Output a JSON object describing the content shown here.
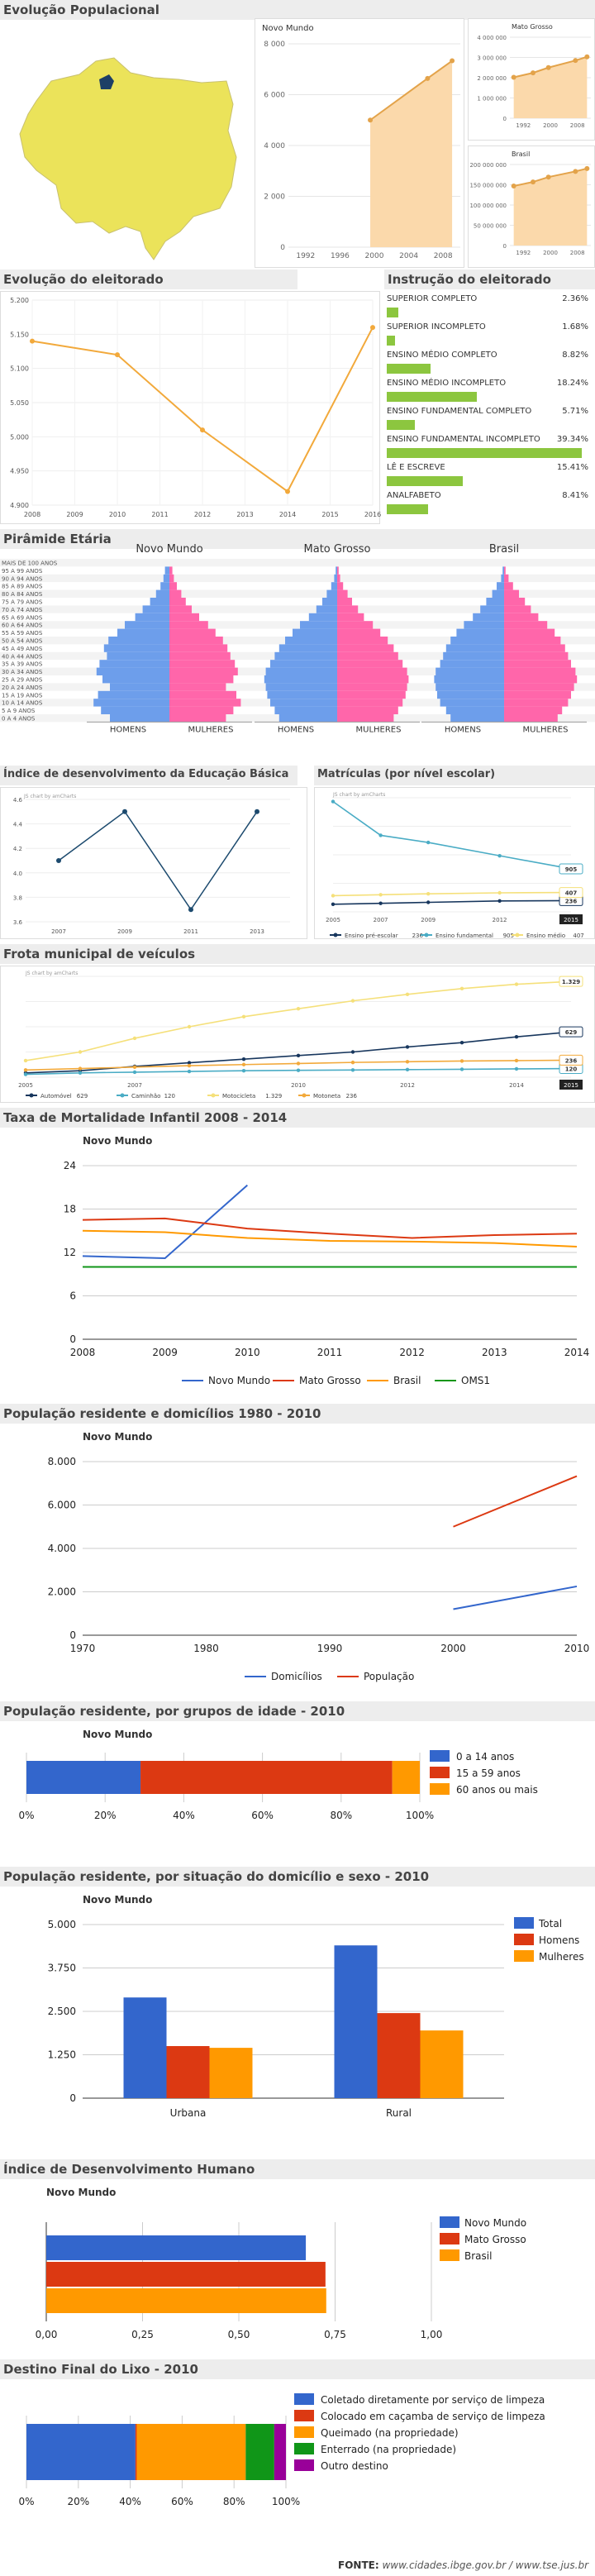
{
  "footer": {
    "label": "FONTE:",
    "text": "www.cidades.ibge.gov.br / www.tse.jus.br"
  },
  "sections": {
    "pop_evolution": "Evolução Populacional",
    "electorate": "Evolução do eleitorado",
    "instruction": "Instrução do eleitorado",
    "pyramid": "Pirâmide Etária",
    "ideb": "Índice de desenvolvimento da Educação Básica",
    "enrollment": "Matrículas (por nível escolar)",
    "fleet": "Frota municipal de veículos",
    "mortality": "Taxa de Mortalidade Infantil 2008 - 2014",
    "residents": "População residente e domicílios 1980 - 2010",
    "age_groups": "População residente, por grupos de idade - 2010",
    "situation": "População residente, por situação do domicílio e sexo - 2010",
    "idh": "Índice de Desenvolvimento Humano",
    "trash": "Destino Final do Lixo - 2010"
  },
  "chart_data": [
    {
      "id": "pop_nm",
      "type": "area",
      "title": "Novo Mundo",
      "x": [
        2000,
        2007,
        2010
      ],
      "values": [
        5000,
        6640,
        7332
      ],
      "ylim": [
        0,
        8000
      ],
      "yticks": [
        "0",
        "2 000",
        "4 000",
        "6 000",
        "8 000"
      ],
      "xticks": [
        "1992",
        "1996",
        "2000",
        "2004",
        "2008"
      ],
      "color": "#e3a34a"
    },
    {
      "id": "pop_mt",
      "type": "area",
      "title": "Mato Grosso",
      "x": [
        1991,
        1996,
        2000,
        2007,
        2010
      ],
      "values": [
        2020000,
        2240000,
        2500000,
        2850000,
        3030000
      ],
      "ylim": [
        0,
        4000000
      ],
      "yticks": [
        "0",
        "1 000 000",
        "2 000 000",
        "3 000 000",
        "4 000 000"
      ],
      "xticks": [
        "1992",
        "2000",
        "2008"
      ],
      "color": "#e3a34a"
    },
    {
      "id": "pop_br",
      "type": "area",
      "title": "Brasil",
      "x": [
        1991,
        1996,
        2000,
        2007,
        2010
      ],
      "values": [
        147000000,
        157000000,
        169000000,
        183000000,
        190000000
      ],
      "ylim": [
        0,
        200000000
      ],
      "yticks": [
        "0",
        "50 000 000",
        "100 000 000",
        "150 000 000",
        "200 000 000"
      ],
      "xticks": [
        "1992",
        "2000",
        "2008"
      ],
      "color": "#e3a34a"
    },
    {
      "id": "electorate",
      "type": "line",
      "x": [
        2008,
        2010,
        2012,
        2014,
        2016
      ],
      "values": [
        5140,
        5120,
        5010,
        4920,
        5160
      ],
      "ylim": [
        4900,
        5200
      ],
      "yticks": [
        "4.900",
        "4.950",
        "5.000",
        "5.050",
        "5.100",
        "5.150",
        "5.200"
      ],
      "xticks": [
        "2008",
        "2009",
        "2010",
        "2011",
        "2012",
        "2013",
        "2014",
        "2015",
        "2016"
      ],
      "color": "#f2a93b"
    },
    {
      "id": "instruction",
      "type": "bar",
      "categories": [
        "SUPERIOR COMPLETO",
        "SUPERIOR INCOMPLETO",
        "ENSINO MÉDIO COMPLETO",
        "ENSINO MÉDIO INCOMPLETO",
        "ENSINO FUNDAMENTAL COMPLETO",
        "ENSINO FUNDAMENTAL INCOMPLETO",
        "LÊ E ESCREVE",
        "ANALFABETO"
      ],
      "values": [
        2.36,
        1.68,
        8.82,
        18.24,
        5.71,
        39.34,
        15.41,
        8.41
      ],
      "labels": [
        "2.36%",
        "1.68%",
        "8.82%",
        "18.24%",
        "5.71%",
        "39.34%",
        "15.41%",
        "8.41%"
      ],
      "color": "#8cc63f"
    },
    {
      "id": "pyramid",
      "type": "bar",
      "age_groups": [
        "MAIS DE 100 ANOS",
        "95 A 99 ANOS",
        "90 A 94 ANOS",
        "85 A 89 ANOS",
        "80 A 84 ANOS",
        "75 A 79 ANOS",
        "70 A 74 ANOS",
        "65 A 69 ANOS",
        "60 A 64 ANOS",
        "55 A 59 ANOS",
        "50 A 54 ANOS",
        "45 A 49 ANOS",
        "40 A 44 ANOS",
        "35 A 39 ANOS",
        "30 A 34 ANOS",
        "25 A 29 ANOS",
        "20 A 24 ANOS",
        "15 A 19 ANOS",
        "10 A 14 ANOS",
        "5 A 9 ANOS",
        "0 A 4 ANOS"
      ],
      "panels": [
        {
          "title": "Novo Mundo",
          "men": [
            0,
            0.3,
            0.4,
            0.6,
            0.9,
            1.3,
            1.8,
            2.3,
            3.0,
            3.5,
            4.1,
            4.4,
            4.2,
            4.7,
            4.9,
            4.5,
            4.0,
            4.8,
            5.1,
            4.6,
            4.0
          ],
          "women": [
            0,
            0.2,
            0.3,
            0.5,
            0.8,
            1.1,
            1.5,
            2.0,
            2.6,
            3.1,
            3.6,
            3.9,
            4.1,
            4.4,
            4.6,
            4.3,
            3.8,
            4.5,
            4.8,
            4.3,
            3.8
          ]
        },
        {
          "title": "Mato Grosso",
          "men": [
            0,
            0.1,
            0.2,
            0.4,
            0.7,
            1.0,
            1.4,
            1.9,
            2.5,
            3.0,
            3.5,
            3.9,
            4.2,
            4.5,
            4.8,
            4.9,
            4.8,
            4.7,
            4.5,
            4.2,
            3.9
          ],
          "women": [
            0,
            0.1,
            0.2,
            0.4,
            0.7,
            1.0,
            1.4,
            1.8,
            2.4,
            2.9,
            3.4,
            3.8,
            4.1,
            4.4,
            4.7,
            4.8,
            4.7,
            4.6,
            4.4,
            4.1,
            3.8
          ]
        },
        {
          "title": "Brasil",
          "men": [
            0,
            0.1,
            0.2,
            0.5,
            0.8,
            1.2,
            1.6,
            2.1,
            2.7,
            3.2,
            3.6,
            3.9,
            4.1,
            4.3,
            4.6,
            4.7,
            4.6,
            4.5,
            4.3,
            3.9,
            3.6
          ],
          "women": [
            0,
            0.1,
            0.3,
            0.6,
            1.0,
            1.4,
            1.8,
            2.3,
            2.9,
            3.4,
            3.8,
            4.1,
            4.3,
            4.5,
            4.8,
            4.9,
            4.7,
            4.5,
            4.3,
            3.9,
            3.6
          ]
        }
      ],
      "xlabels": [
        "HOMENS",
        "MULHERES"
      ],
      "colors": {
        "men": "#6d9eeb",
        "women": "#ff66aa"
      }
    },
    {
      "id": "ideb",
      "type": "line",
      "x": [
        2007,
        2009,
        2011,
        2013
      ],
      "values": [
        4.1,
        4.5,
        3.7,
        4.5
      ],
      "ylim": [
        3.6,
        4.6
      ],
      "yticks": [
        "3.6",
        "3.8",
        "4.0",
        "4.2",
        "4.4",
        "4.6"
      ],
      "xticks": [
        "2007",
        "2009",
        "2011",
        "2013"
      ],
      "chart_caption": "JS chart by amCharts",
      "color": "#1c4a6e"
    },
    {
      "id": "enrollment",
      "type": "line",
      "x": [
        2005,
        2007,
        2009,
        2012,
        2015
      ],
      "series": [
        {
          "name": "Ensino pré-escolar",
          "values": [
            160,
            180,
            200,
            230,
            236
          ],
          "color": "#17365d",
          "end_label": "236"
        },
        {
          "name": "Ensino fundamental",
          "values": [
            2320,
            1610,
            1460,
            1180,
            905
          ],
          "color": "#4aacc5",
          "end_label": "905"
        },
        {
          "name": "Ensino médio",
          "values": [
            340,
            360,
            380,
            400,
            407
          ],
          "color": "#f5e07a",
          "end_label": "407"
        }
      ],
      "legend_values": [
        "236",
        "905",
        "407"
      ],
      "xticks": [
        "2005",
        "2007",
        "2009",
        "2012"
      ],
      "last_label": "2015",
      "chart_caption": "JS chart by amCharts"
    },
    {
      "id": "fleet",
      "type": "line",
      "x": [
        2005,
        2006,
        2007,
        2008,
        2009,
        2010,
        2011,
        2012,
        2013,
        2014,
        2015
      ],
      "series": [
        {
          "name": "Automóvel",
          "values": [
            60,
            90,
            150,
            200,
            250,
            300,
            350,
            420,
            480,
            560,
            629
          ],
          "color": "#17365d",
          "end_label": "629"
        },
        {
          "name": "Caminhão",
          "values": [
            40,
            60,
            70,
            80,
            90,
            95,
            100,
            105,
            110,
            115,
            120
          ],
          "color": "#4aacc5",
          "end_label": "120"
        },
        {
          "name": "Motocicleta",
          "values": [
            230,
            350,
            540,
            700,
            840,
            950,
            1060,
            1150,
            1230,
            1290,
            1329
          ],
          "color": "#f5e07a",
          "end_label": "1.329"
        },
        {
          "name": "Motoneta",
          "values": [
            100,
            120,
            140,
            160,
            175,
            190,
            205,
            215,
            225,
            230,
            236
          ],
          "color": "#f2a93b",
          "end_label": "236"
        }
      ],
      "legend_values": [
        "629",
        "120",
        "1.329",
        "236"
      ],
      "xticks": [
        "2005",
        "2007",
        "2010",
        "2012",
        "2014"
      ],
      "last_label": "2015",
      "chart_caption": "JS chart by amCharts"
    },
    {
      "id": "mortality",
      "type": "line",
      "title": "Novo Mundo",
      "x": [
        2008,
        2009,
        2010,
        2011,
        2012,
        2013,
        2014
      ],
      "series": [
        {
          "name": "Novo Mundo",
          "values": [
            11.5,
            11.2,
            21.3,
            null,
            null,
            null,
            null
          ],
          "color": "#3366cc"
        },
        {
          "name": "Mato Grosso",
          "values": [
            16.5,
            16.7,
            15.3,
            14.6,
            14.0,
            14.4,
            14.6
          ],
          "color": "#dc3912"
        },
        {
          "name": "Brasil",
          "values": [
            15.0,
            14.8,
            14.0,
            13.6,
            13.5,
            13.3,
            12.8
          ],
          "color": "#ff9900"
        },
        {
          "name": "OMS1",
          "values": [
            10.0,
            10.0,
            10.0,
            10.0,
            10.0,
            10.0,
            10.0
          ],
          "color": "#109618"
        }
      ],
      "ylim": [
        0,
        24
      ],
      "yticks": [
        "0",
        "6",
        "12",
        "18",
        "24"
      ],
      "xticks": [
        "2008",
        "2009",
        "2010",
        "2011",
        "2012",
        "2013",
        "2014"
      ]
    },
    {
      "id": "residents",
      "type": "line",
      "title": "Novo Mundo",
      "x": [
        2000,
        2010
      ],
      "series": [
        {
          "name": "Domicílios",
          "values": [
            1200,
            2250
          ],
          "color": "#3366cc"
        },
        {
          "name": "População",
          "values": [
            5000,
            7332
          ],
          "color": "#dc3912"
        }
      ],
      "ylim": [
        0,
        8000
      ],
      "xlim": [
        1970,
        2010
      ],
      "yticks": [
        "0",
        "2.000",
        "4.000",
        "6.000",
        "8.000"
      ],
      "xticks": [
        "1970",
        "1980",
        "1990",
        "2000",
        "2010"
      ]
    },
    {
      "id": "age_groups",
      "type": "bar",
      "title": "Novo Mundo",
      "series": [
        {
          "name": "0 a 14 anos",
          "value": 29,
          "color": "#3366cc"
        },
        {
          "name": "15 a 59 anos",
          "value": 64,
          "color": "#dc3912"
        },
        {
          "name": "60 anos ou mais",
          "value": 7,
          "color": "#ff9900"
        }
      ],
      "xticks": [
        "0%",
        "20%",
        "40%",
        "60%",
        "80%",
        "100%"
      ]
    },
    {
      "id": "situation",
      "type": "bar",
      "title": "Novo Mundo",
      "categories": [
        "Urbana",
        "Rural"
      ],
      "series": [
        {
          "name": "Total",
          "values": [
            2900,
            4400
          ],
          "color": "#3366cc"
        },
        {
          "name": "Homens",
          "values": [
            1500,
            2450
          ],
          "color": "#dc3912"
        },
        {
          "name": "Mulheres",
          "values": [
            1450,
            1950
          ],
          "color": "#ff9900"
        }
      ],
      "ylim": [
        0,
        5000
      ],
      "yticks": [
        "0",
        "1.250",
        "2.500",
        "3.750",
        "5.000"
      ]
    },
    {
      "id": "idh",
      "type": "bar",
      "title": "Novo Mundo",
      "series": [
        {
          "name": "Novo Mundo",
          "value": 0.674,
          "color": "#3366cc"
        },
        {
          "name": "Mato Grosso",
          "value": 0.725,
          "color": "#dc3912"
        },
        {
          "name": "Brasil",
          "value": 0.727,
          "color": "#ff9900"
        }
      ],
      "xlim": [
        0,
        1
      ],
      "xticks": [
        "0,00",
        "0,25",
        "0,50",
        "0,75",
        "1,00"
      ]
    },
    {
      "id": "trash",
      "type": "bar",
      "series": [
        {
          "name": "Coletado diretamente por serviço de limpeza",
          "value": 42,
          "color": "#3366cc"
        },
        {
          "name": "Colocado em caçamba de serviço de limpeza",
          "value": 0.5,
          "color": "#dc3912"
        },
        {
          "name": "Queimado (na propriedade)",
          "value": 42,
          "color": "#ff9900"
        },
        {
          "name": "Enterrado (na propriedade)",
          "value": 11,
          "color": "#109618"
        },
        {
          "name": "Outro destino",
          "value": 4.5,
          "color": "#990099"
        }
      ],
      "xticks": [
        "0%",
        "20%",
        "40%",
        "60%",
        "80%",
        "100%"
      ]
    }
  ]
}
